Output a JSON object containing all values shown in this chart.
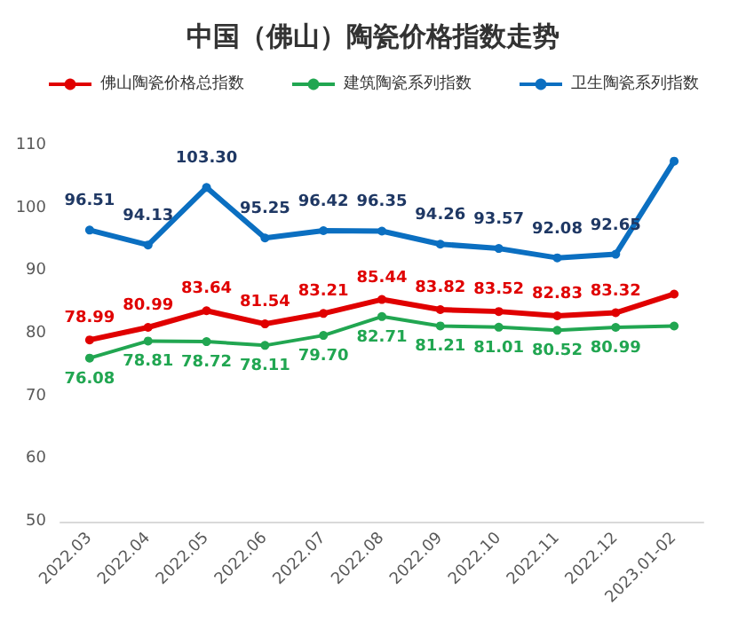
{
  "chart_data": {
    "type": "line",
    "title": "中国（佛山）陶瓷价格指数走势",
    "categories": [
      "2022.03",
      "2022.04",
      "2022.05",
      "2022.06",
      "2022.07",
      "2022.08",
      "2022.09",
      "2022.10",
      "2022.11",
      "2022.12",
      "2023.01-02"
    ],
    "series": [
      {
        "name": "佛山陶瓷价格总指数",
        "color": "#e00000",
        "values": [
          78.99,
          80.99,
          83.64,
          81.54,
          83.21,
          85.44,
          83.82,
          83.52,
          82.83,
          83.32,
          86.3
        ],
        "value_labels": [
          "78.99",
          "80.99",
          "83.64",
          "81.54",
          "83.21",
          "85.44",
          "83.82",
          "83.52",
          "82.83",
          "83.32",
          null
        ]
      },
      {
        "name": "建筑陶瓷系列指数",
        "color": "#21a651",
        "values": [
          76.08,
          78.81,
          78.72,
          78.11,
          79.7,
          82.71,
          81.21,
          81.01,
          80.52,
          80.99,
          81.2
        ],
        "value_labels": [
          "76.08",
          "78.81",
          "78.72",
          "78.11",
          "79.70",
          "82.71",
          "81.21",
          "81.01",
          "80.52",
          "80.99",
          null
        ]
      },
      {
        "name": "卫生陶瓷系列指数",
        "color": "#0b6fc1",
        "values": [
          96.51,
          94.13,
          103.3,
          95.25,
          96.42,
          96.35,
          94.26,
          93.57,
          92.08,
          92.65,
          107.5
        ],
        "value_labels": [
          "96.51",
          "94.13",
          "103.30",
          "95.25",
          "96.42",
          "96.35",
          "94.26",
          "93.57",
          "92.08",
          "92.65",
          null
        ]
      }
    ],
    "ylim": [
      50,
      110
    ],
    "yticks": [
      50,
      60,
      70,
      80,
      90,
      100,
      110
    ],
    "grid": false,
    "legend": "top",
    "marker": "circle",
    "line_style": "solid"
  }
}
